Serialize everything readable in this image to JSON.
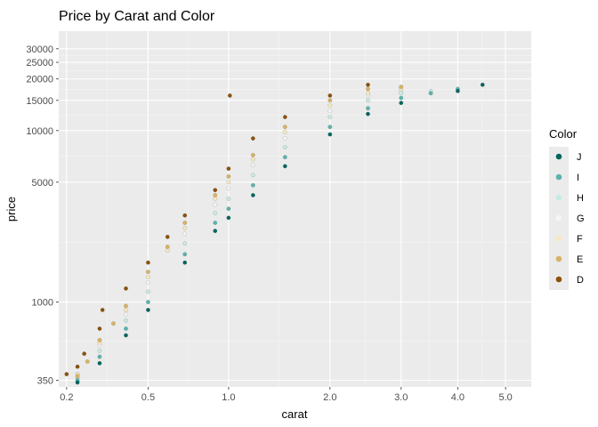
{
  "chart_data": {
    "type": "scatter",
    "title": "Price by Carat and Color",
    "xlabel": "carat",
    "ylabel": "price",
    "x_scale": "cube-root",
    "y_scale": "log10",
    "xlim": [
      0.18,
      5.6
    ],
    "ylim": [
      320,
      38000
    ],
    "x_ticks": [
      0.2,
      0.5,
      1.0,
      2.0,
      3.0,
      4.0,
      5.0
    ],
    "x_tick_labels": [
      "0.2",
      "0.5",
      "1.0",
      "2.0",
      "3.0",
      "4.0",
      "5.0"
    ],
    "y_ticks": [
      350,
      1000,
      5000,
      10000,
      15000,
      20000,
      25000,
      30000
    ],
    "y_tick_labels": [
      "350",
      "1000",
      "5000",
      "10000",
      "15000",
      "20000",
      "25000",
      "30000"
    ],
    "grid": true,
    "panel_background": "#ebebeb",
    "legend": {
      "title": "Color",
      "placement": "right",
      "entries": [
        {
          "label": "J",
          "color": "#01665e"
        },
        {
          "label": "I",
          "color": "#5ab4ac"
        },
        {
          "label": "H",
          "color": "#c7eae5"
        },
        {
          "label": "G",
          "color": "#f5f5f5"
        },
        {
          "label": "F",
          "color": "#f6e8c3"
        },
        {
          "label": "E",
          "color": "#d8b365"
        },
        {
          "label": "D",
          "color": "#8c510a"
        }
      ]
    },
    "series": [
      {
        "name": "D",
        "color": "#8c510a",
        "x": [
          0.2,
          0.23,
          0.25,
          0.3,
          0.31,
          0.4,
          0.5,
          0.6,
          0.7,
          0.9,
          1.0,
          1.01,
          1.2,
          1.5,
          2.0,
          2.5
        ],
        "y": [
          380,
          420,
          500,
          700,
          900,
          1200,
          1700,
          2400,
          3200,
          4500,
          6000,
          16000,
          9000,
          12000,
          16000,
          18500
        ]
      },
      {
        "name": "E",
        "color": "#d8b365",
        "x": [
          0.23,
          0.26,
          0.3,
          0.35,
          0.4,
          0.5,
          0.6,
          0.7,
          0.9,
          1.0,
          1.2,
          1.5,
          2.0,
          2.5,
          3.0
        ],
        "y": [
          370,
          450,
          600,
          750,
          950,
          1500,
          2100,
          2900,
          4200,
          5400,
          7200,
          10500,
          15000,
          17500,
          18000
        ]
      },
      {
        "name": "F",
        "color": "#f6e8c3",
        "x": [
          0.23,
          0.3,
          0.4,
          0.5,
          0.6,
          0.7,
          0.9,
          1.0,
          1.2,
          1.5,
          2.0,
          2.5,
          3.0
        ],
        "y": [
          380,
          580,
          900,
          1400,
          2000,
          2700,
          4000,
          5000,
          6800,
          9800,
          14000,
          16500,
          17500
        ]
      },
      {
        "name": "G",
        "color": "#f5f5f5",
        "x": [
          0.23,
          0.3,
          0.4,
          0.5,
          0.7,
          0.9,
          1.0,
          1.2,
          1.5,
          2.0,
          2.5,
          3.0
        ],
        "y": [
          380,
          560,
          850,
          1300,
          2500,
          3700,
          4600,
          6300,
          9000,
          13000,
          16000,
          17000
        ]
      },
      {
        "name": "H",
        "color": "#c7eae5",
        "x": [
          0.23,
          0.3,
          0.4,
          0.5,
          0.7,
          0.9,
          1.0,
          1.2,
          1.5,
          2.0,
          2.5,
          3.0,
          3.5
        ],
        "y": [
          360,
          520,
          780,
          1150,
          2200,
          3300,
          4000,
          5500,
          8000,
          12000,
          15000,
          16500,
          17000
        ]
      },
      {
        "name": "I",
        "color": "#5ab4ac",
        "x": [
          0.23,
          0.3,
          0.4,
          0.5,
          0.7,
          0.9,
          1.0,
          1.2,
          1.5,
          2.0,
          2.5,
          3.0,
          3.5,
          4.0
        ],
        "y": [
          350,
          480,
          700,
          1000,
          1900,
          2900,
          3500,
          4800,
          7000,
          10500,
          13500,
          15500,
          16500,
          17500
        ]
      },
      {
        "name": "J",
        "color": "#01665e",
        "x": [
          0.23,
          0.3,
          0.4,
          0.5,
          0.7,
          0.9,
          1.0,
          1.2,
          1.5,
          2.0,
          2.5,
          3.0,
          4.0,
          4.5
        ],
        "y": [
          340,
          440,
          640,
          900,
          1700,
          2600,
          3100,
          4200,
          6200,
          9500,
          12500,
          14500,
          17000,
          18500
        ]
      }
    ]
  }
}
